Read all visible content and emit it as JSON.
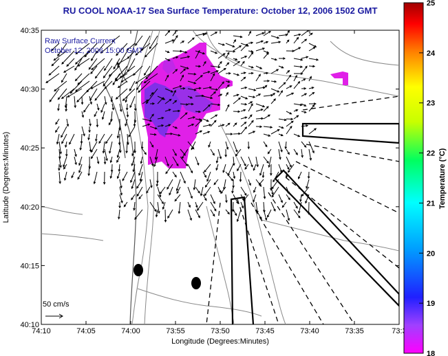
{
  "title": "RU COOL  NOAA-17  Sea Surface Temperature:  October 12, 2006 1502 GMT",
  "overlay": {
    "line1": "Raw Surface Current",
    "line2": "October 12, 2006 15:00 GMT"
  },
  "scale_label": "50 cm/s",
  "chart_data": {
    "type": "map",
    "xlabel": "Longitude (Degrees:Minutes)",
    "ylabel": "Latitude (Degrees:Minutes)",
    "x_ticks": [
      "74:10",
      "74:05",
      "74:00",
      "73:55",
      "73:50",
      "73:45",
      "73:40",
      "73:35",
      "73:3"
    ],
    "y_ticks": [
      "40:35",
      "40:30",
      "40:25",
      "40:20",
      "40:15",
      "40:10"
    ],
    "colorbar": {
      "label": "Temperature (°C)",
      "range": [
        18,
        25
      ],
      "ticks": [
        "25",
        "24",
        "23",
        "22",
        "21",
        "20",
        "19",
        "18"
      ]
    }
  }
}
